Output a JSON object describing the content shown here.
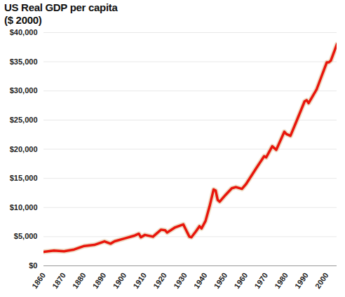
{
  "chart_data": {
    "type": "line",
    "title": "US Real GDP per capita",
    "subtitle": "($ 2000)",
    "x": [
      1860,
      1865,
      1870,
      1875,
      1880,
      1885,
      1890,
      1893,
      1895,
      1900,
      1905,
      1907,
      1908,
      1910,
      1914,
      1915,
      1918,
      1920,
      1921,
      1925,
      1929,
      1930,
      1932,
      1933,
      1935,
      1937,
      1938,
      1940,
      1942,
      1944,
      1945,
      1946,
      1947,
      1950,
      1953,
      1955,
      1958,
      1960,
      1965,
      1969,
      1970,
      1973,
      1975,
      1979,
      1980,
      1982,
      1985,
      1989,
      1990,
      1991,
      1995,
      2000,
      2001,
      2002,
      2005
    ],
    "values": [
      2400,
      2600,
      2500,
      2800,
      3400,
      3600,
      4200,
      3800,
      4200,
      4700,
      5200,
      5500,
      4900,
      5300,
      5000,
      5300,
      6200,
      6100,
      5700,
      6600,
      7100,
      6400,
      5000,
      4900,
      5800,
      6800,
      6400,
      7700,
      10200,
      13100,
      12900,
      11300,
      11000,
      12200,
      13300,
      13500,
      13200,
      14000,
      16700,
      18800,
      18600,
      20500,
      19900,
      23000,
      22600,
      22300,
      24800,
      28200,
      28400,
      27900,
      30300,
      34900,
      34900,
      35200,
      38000
    ],
    "color": "#e8160c",
    "xlim": [
      1860,
      2005
    ],
    "xticks": [
      1860,
      1870,
      1880,
      1890,
      1900,
      1910,
      1920,
      1930,
      1940,
      1950,
      1960,
      1970,
      1980,
      1990,
      2000
    ],
    "ylim": [
      0,
      40000
    ],
    "yticks": [
      {
        "value": 0,
        "label": "$0"
      },
      {
        "value": 5000,
        "label": "$5,000"
      },
      {
        "value": 10000,
        "label": "$10,000"
      },
      {
        "value": 15000,
        "label": "$15,000"
      },
      {
        "value": 20000,
        "label": "$20,000"
      },
      {
        "value": 25000,
        "label": "$25,000"
      },
      {
        "value": 30000,
        "label": "$30,000"
      },
      {
        "value": 35000,
        "label": "$35,000"
      },
      {
        "value": 40000,
        "label": "$40,000"
      }
    ],
    "grid": true
  }
}
